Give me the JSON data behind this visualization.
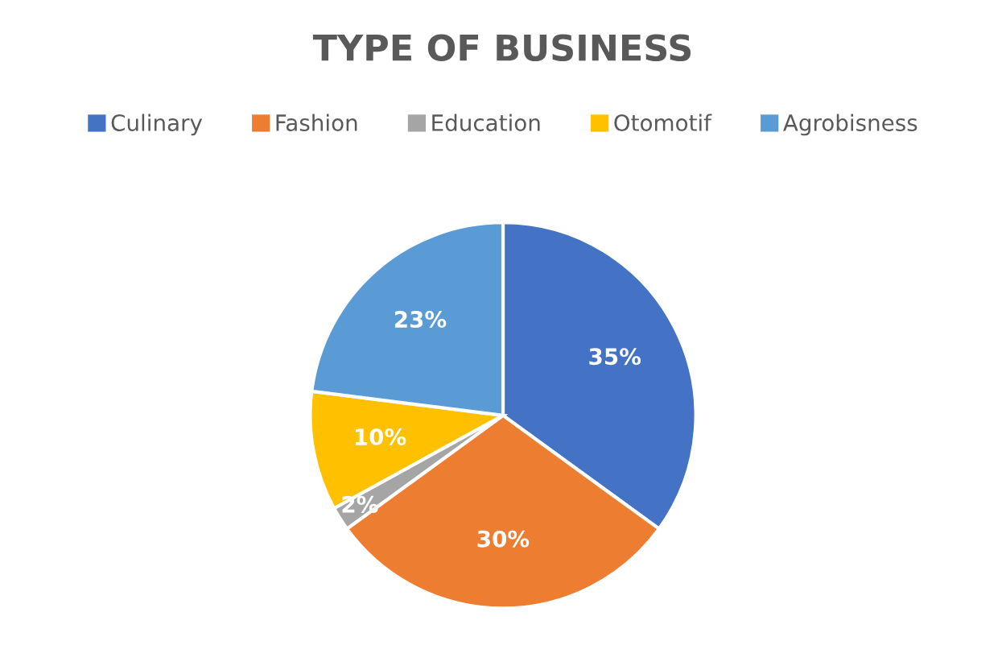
{
  "chart_data": {
    "type": "pie",
    "title": "TYPE OF BUSINESS",
    "categories": [
      "Culinary",
      "Fashion",
      "Education",
      "Otomotif",
      "Agrobisness"
    ],
    "values": [
      35,
      30,
      2,
      10,
      23
    ],
    "colors": [
      "#4472c4",
      "#ed7d31",
      "#a5a5a5",
      "#ffc000",
      "#5b9bd5"
    ],
    "value_labels": [
      "35%",
      "30%",
      "2%",
      "10%",
      "23%"
    ],
    "legend": "top"
  }
}
